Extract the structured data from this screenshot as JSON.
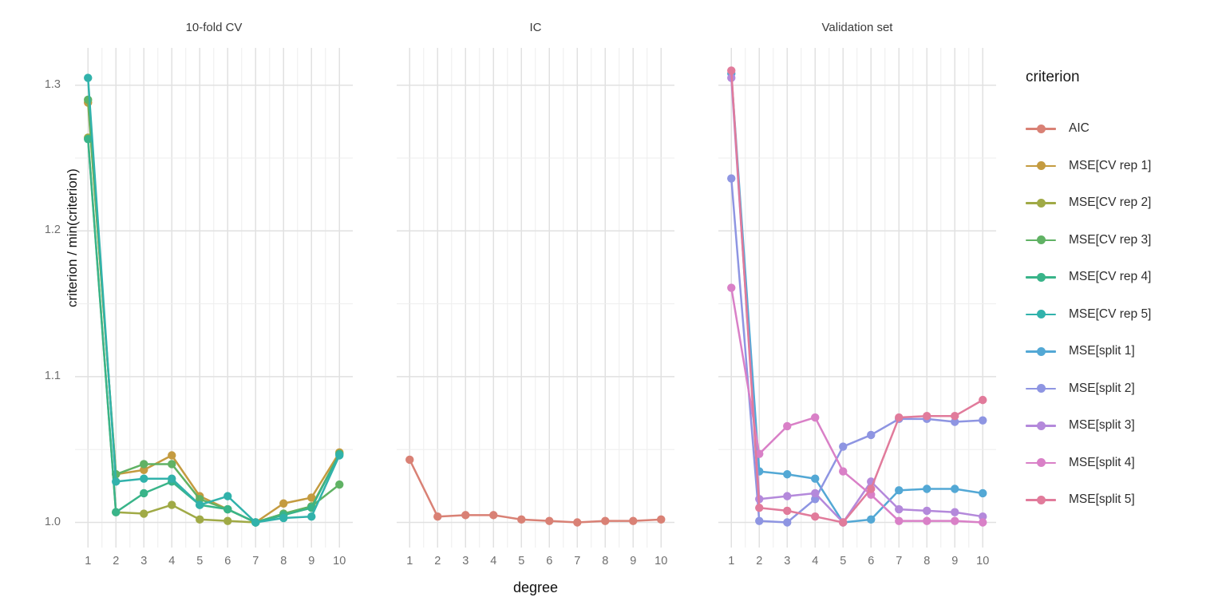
{
  "chart_data": {
    "type": "line",
    "xlabel": "degree",
    "ylabel": "criterion / min(criterion)",
    "x": [
      1,
      2,
      3,
      4,
      5,
      6,
      7,
      8,
      9,
      10
    ],
    "x_tick_labels": [
      "1",
      "2",
      "3",
      "4",
      "5",
      "6",
      "7",
      "8",
      "9",
      "10"
    ],
    "y_tick_labels": [
      "1.0",
      "1.1",
      "1.2",
      "1.3"
    ],
    "y_major_gridlines": [
      1.0,
      1.1,
      1.2,
      1.3
    ],
    "y_minor_gridlines": [
      1.05,
      1.15,
      1.25
    ],
    "x_minor_gridlines": [
      1.5,
      2.5,
      3.5,
      4.5,
      5.5,
      6.5,
      7.5,
      8.5,
      9.5
    ],
    "ylim": [
      0.9885,
      1.3185
    ],
    "grid": true,
    "legend_position": "right",
    "facets": [
      {
        "title": "10-fold CV",
        "series": [
          {
            "name": "MSE[CV rep 1]",
            "color": "#C49B40",
            "values": [
              1.288,
              1.033,
              1.036,
              1.046,
              1.018,
              1.009,
              1.0,
              1.013,
              1.017,
              1.048
            ]
          },
          {
            "name": "MSE[CV rep 2]",
            "color": "#A0AA46",
            "values": [
              1.264,
              1.007,
              1.006,
              1.012,
              1.002,
              1.001,
              1.0,
              1.006,
              1.011,
              1.047
            ]
          },
          {
            "name": "MSE[CV rep 3]",
            "color": "#60B264",
            "values": [
              1.29,
              1.033,
              1.04,
              1.04,
              1.016,
              1.009,
              1.0,
              1.006,
              1.011,
              1.026
            ]
          },
          {
            "name": "MSE[CV rep 4]",
            "color": "#39B489",
            "values": [
              1.263,
              1.007,
              1.02,
              1.028,
              1.012,
              1.009,
              1.0,
              1.005,
              1.01,
              1.047
            ]
          },
          {
            "name": "MSE[CV rep 5]",
            "color": "#31B2AB",
            "values": [
              1.305,
              1.028,
              1.03,
              1.03,
              1.012,
              1.018,
              1.0,
              1.003,
              1.004,
              1.046
            ]
          }
        ]
      },
      {
        "title": "IC",
        "series": [
          {
            "name": "AIC",
            "color": "#D98175",
            "values": [
              1.043,
              1.004,
              1.005,
              1.005,
              1.002,
              1.001,
              1.0,
              1.001,
              1.001,
              1.002
            ]
          }
        ]
      },
      {
        "title": "Validation set",
        "series": [
          {
            "name": "MSE[split 1]",
            "color": "#53A8D5",
            "values": [
              1.308,
              1.035,
              1.033,
              1.03,
              1.0,
              1.002,
              1.022,
              1.023,
              1.023,
              1.02
            ]
          },
          {
            "name": "MSE[split 2]",
            "color": "#8E95E2",
            "values": [
              1.236,
              1.001,
              1.0,
              1.016,
              1.052,
              1.06,
              1.071,
              1.071,
              1.069,
              1.07
            ]
          },
          {
            "name": "MSE[split 3]",
            "color": "#B489DB",
            "values": [
              1.305,
              1.016,
              1.018,
              1.02,
              1.0,
              1.028,
              1.009,
              1.008,
              1.007,
              1.004
            ]
          },
          {
            "name": "MSE[split 4]",
            "color": "#D980C7",
            "values": [
              1.161,
              1.047,
              1.066,
              1.072,
              1.035,
              1.019,
              1.001,
              1.001,
              1.001,
              1.0
            ]
          },
          {
            "name": "MSE[split 5]",
            "color": "#E17B9B",
            "values": [
              1.31,
              1.01,
              1.008,
              1.004,
              1.0,
              1.023,
              1.072,
              1.073,
              1.073,
              1.084
            ]
          }
        ]
      }
    ],
    "legend": {
      "title": "criterion",
      "entries": [
        {
          "label": "AIC",
          "color": "#D98175"
        },
        {
          "label": "MSE[CV rep 1]",
          "color": "#C49B40"
        },
        {
          "label": "MSE[CV rep 2]",
          "color": "#A0AA46"
        },
        {
          "label": "MSE[CV rep 3]",
          "color": "#60B264"
        },
        {
          "label": "MSE[CV rep 4]",
          "color": "#39B489"
        },
        {
          "label": "MSE[CV rep 5]",
          "color": "#31B2AB"
        },
        {
          "label": "MSE[split 1]",
          "color": "#53A8D5"
        },
        {
          "label": "MSE[split 2]",
          "color": "#8E95E2"
        },
        {
          "label": "MSE[split 3]",
          "color": "#B489DB"
        },
        {
          "label": "MSE[split 4]",
          "color": "#D980C7"
        },
        {
          "label": "MSE[split 5]",
          "color": "#E17B9B"
        }
      ]
    },
    "style": {
      "major_grid_color": "#e1e1e1",
      "minor_grid_color": "#eeeeee",
      "background": "#ffffff"
    }
  }
}
